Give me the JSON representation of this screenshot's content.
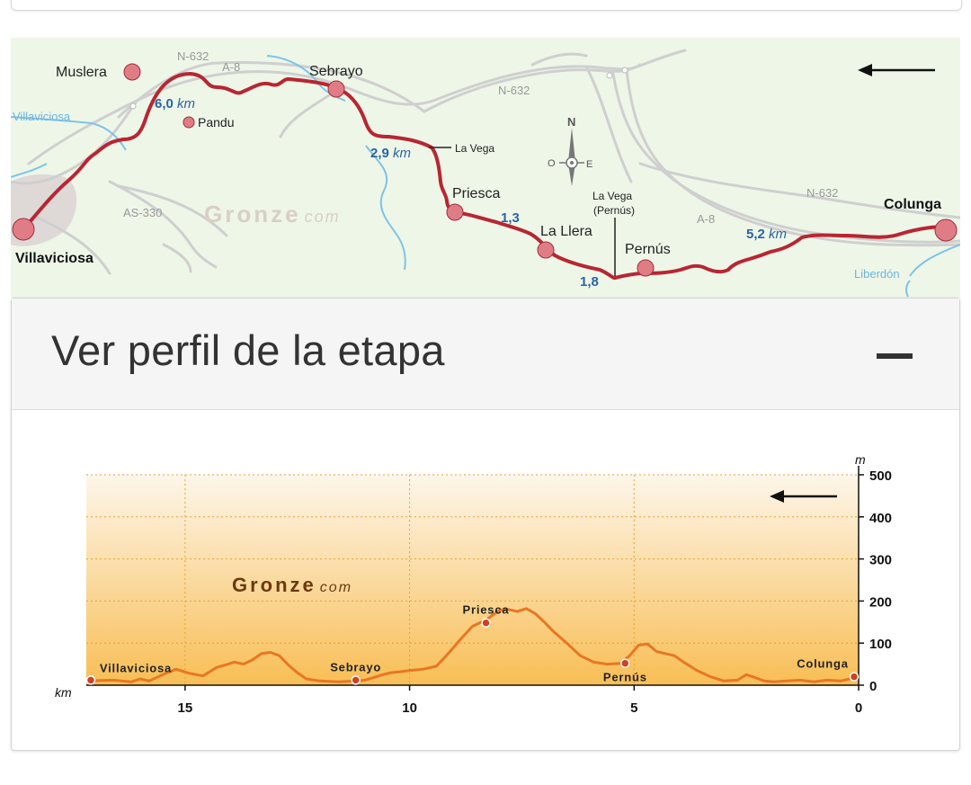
{
  "map": {
    "places": {
      "muslera": "Muslera",
      "sebrayo": "Sebrayo",
      "pandu": "Pandu",
      "villaviciosa": "Villaviciosa",
      "priesca": "Priesca",
      "la_llera": "La Llera",
      "pernus": "Pernús",
      "colunga": "Colunga"
    },
    "roads": {
      "n632_a": "N-632",
      "a8_a": "A-8",
      "n632_b": "N-632",
      "as330": "AS-330",
      "n632_c": "N-632",
      "a8_b": "A-8"
    },
    "rivers": {
      "villaviciosa": "Villaviciosa",
      "liberdon": "Liberdón"
    },
    "distances": {
      "d1": "6,0",
      "d2": "2,9",
      "d3": "1,3",
      "d4": "1,8",
      "d5": "5,2",
      "unit": "km"
    },
    "callouts": {
      "la_vega": "La Vega",
      "la_vega_pernus_1": "La Vega",
      "la_vega_pernus_2": "(Pernús)"
    },
    "compass": {
      "n": "N",
      "o": "O",
      "e": "E"
    },
    "watermark": {
      "main": "Gronze",
      "suffix": "com"
    }
  },
  "panel": {
    "title": "Ver perfil de la etapa",
    "collapse_icon": "minus-icon"
  },
  "chart_data": {
    "type": "area",
    "title": "",
    "xlabel": "km",
    "ylabel": "m",
    "xlim": [
      17.2,
      0
    ],
    "ylim": [
      0,
      500
    ],
    "x_ticks": [
      "15",
      "10",
      "5",
      "0"
    ],
    "y_ticks": [
      "500",
      "400",
      "300",
      "200",
      "100",
      "0"
    ],
    "watermark": {
      "main": "Gronze",
      "suffix": "com"
    },
    "colors": {
      "line": "#e87722",
      "marker": "#d1401f",
      "fill_top": "#fdf6ea",
      "fill_bottom": "#f8be55",
      "grid": "#e6a235"
    },
    "series": [
      {
        "x": [
          17.2,
          16.6,
          16.2,
          16.0,
          15.8,
          15.5,
          15.2,
          14.9,
          14.6,
          14.3,
          14.1,
          13.9,
          13.7,
          13.5,
          13.3,
          13.1,
          12.9,
          12.7,
          12.5,
          12.3,
          12.0,
          11.6,
          11.2,
          11.0,
          10.8,
          10.6,
          10.4,
          10.2,
          10.0,
          9.7,
          9.4,
          9.1,
          8.9,
          8.6,
          8.3,
          8.0,
          7.8,
          7.6,
          7.4,
          7.2,
          7.0,
          6.8,
          6.5,
          6.2,
          5.9,
          5.6,
          5.3,
          5.1,
          4.9,
          4.7,
          4.5,
          4.3,
          4.1,
          3.9,
          3.6,
          3.3,
          3.0,
          2.7,
          2.5,
          2.3,
          2.1,
          1.9,
          1.6,
          1.3,
          1.0,
          0.7,
          0.4,
          0.2,
          0.0
        ],
        "y": [
          10,
          12,
          8,
          15,
          10,
          25,
          38,
          28,
          22,
          42,
          48,
          55,
          50,
          60,
          75,
          78,
          70,
          48,
          30,
          15,
          10,
          8,
          10,
          12,
          18,
          25,
          30,
          32,
          35,
          38,
          45,
          80,
          105,
          140,
          155,
          178,
          180,
          175,
          182,
          170,
          150,
          128,
          100,
          70,
          55,
          50,
          52,
          70,
          95,
          98,
          80,
          75,
          70,
          55,
          35,
          20,
          10,
          12,
          25,
          18,
          10,
          8,
          10,
          12,
          8,
          12,
          10,
          15,
          20
        ]
      }
    ],
    "markers": [
      {
        "label": "Villaviciosa",
        "x": 17.1,
        "y": 12
      },
      {
        "label": "Sebrayo",
        "x": 11.2,
        "y": 12
      },
      {
        "label": "Priesca",
        "x": 8.3,
        "y": 148
      },
      {
        "label": "Pernús",
        "x": 5.2,
        "y": 52
      },
      {
        "label": "Colunga",
        "x": 0.1,
        "y": 20
      }
    ]
  }
}
